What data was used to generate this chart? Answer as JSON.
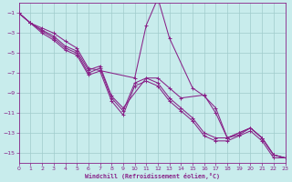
{
  "bg_color": "#c8ecec",
  "grid_color": "#a0cccc",
  "line_color": "#882288",
  "xlabel": "Windchill (Refroidissement éolien,°C)",
  "xlim": [
    0,
    23
  ],
  "ylim": [
    -16,
    0
  ],
  "xticks": [
    0,
    1,
    2,
    3,
    4,
    5,
    6,
    7,
    8,
    9,
    10,
    11,
    12,
    13,
    14,
    15,
    16,
    17,
    18,
    19,
    20,
    21,
    22,
    23
  ],
  "yticks": [
    -15,
    -13,
    -11,
    -9,
    -7,
    -5,
    -3,
    -1
  ],
  "lines": [
    {
      "x": [
        0,
        1,
        2,
        3,
        4,
        5,
        6,
        10,
        11,
        12,
        13,
        15,
        16,
        17,
        18,
        19,
        20,
        21,
        22,
        23
      ],
      "y": [
        -1,
        -2,
        -2.5,
        -3,
        -3.8,
        -4.5,
        -6.5,
        -7.5,
        -2.2,
        0.5,
        -3.5,
        -8.5,
        -9.3,
        -10.5,
        -13.5,
        -13.0,
        -12.5,
        -13.5,
        -15.2,
        -15.5
      ]
    },
    {
      "x": [
        0,
        1,
        2,
        3,
        4,
        5,
        6,
        7,
        8,
        9,
        11,
        12,
        13,
        14,
        16,
        17,
        18,
        19,
        20,
        21,
        22,
        23
      ],
      "y": [
        -1,
        -2,
        -2.7,
        -3.3,
        -4.3,
        -4.8,
        -6.7,
        -6.3,
        -9.3,
        -10.5,
        -7.5,
        -7.5,
        -8.5,
        -9.5,
        -9.2,
        -11.0,
        -13.5,
        -13.2,
        -12.5,
        -13.5,
        -15.2,
        -15.5
      ]
    },
    {
      "x": [
        0,
        1,
        2,
        3,
        4,
        5,
        6,
        7,
        8,
        9,
        10,
        11,
        12,
        13,
        14,
        15,
        16,
        17,
        18,
        19,
        20,
        21,
        22,
        23
      ],
      "y": [
        -1,
        -2,
        -2.8,
        -3.5,
        -4.5,
        -5.0,
        -7.0,
        -6.5,
        -9.5,
        -10.8,
        -8.0,
        -7.5,
        -8.0,
        -9.5,
        -10.5,
        -11.5,
        -13.0,
        -13.5,
        -13.5,
        -13.0,
        -12.5,
        -13.5,
        -15.2,
        -15.5
      ]
    },
    {
      "x": [
        0,
        1,
        2,
        3,
        4,
        5,
        6,
        7,
        8,
        9,
        10,
        11,
        12,
        13,
        14,
        15,
        16,
        17,
        18,
        19,
        20,
        21,
        22,
        23
      ],
      "y": [
        -1,
        -2,
        -3.0,
        -3.7,
        -4.7,
        -5.2,
        -7.2,
        -6.8,
        -9.8,
        -11.2,
        -8.3,
        -7.8,
        -8.3,
        -9.8,
        -10.8,
        -11.8,
        -13.3,
        -13.8,
        -13.8,
        -13.3,
        -12.8,
        -13.8,
        -15.5,
        -15.5
      ]
    }
  ]
}
